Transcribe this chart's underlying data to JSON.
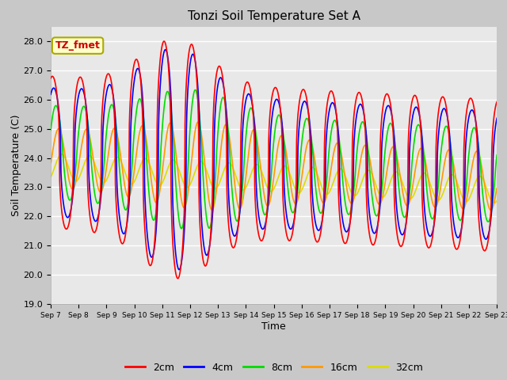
{
  "title": "Tonzi Soil Temperature Set A",
  "xlabel": "Time",
  "ylabel": "Soil Temperature (C)",
  "ylim": [
    19.0,
    28.5
  ],
  "yticks": [
    19.0,
    20.0,
    21.0,
    22.0,
    23.0,
    24.0,
    25.0,
    26.0,
    27.0,
    28.0
  ],
  "annotation_text": "TZ_fmet",
  "annotation_bg": "#ffffcc",
  "annotation_border": "#aaaa00",
  "colors": {
    "2cm": "#ff0000",
    "4cm": "#0000ff",
    "8cm": "#00dd00",
    "16cm": "#ff9900",
    "32cm": "#dddd00"
  },
  "legend_labels": [
    "2cm",
    "4cm",
    "8cm",
    "16cm",
    "32cm"
  ],
  "fig_bg_color": "#c8c8c8",
  "plot_bg_color": "#e8e8e8",
  "n_days": 16,
  "start_day": 7,
  "ppd": 288
}
